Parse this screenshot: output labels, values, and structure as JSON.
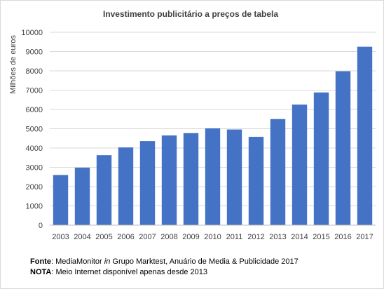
{
  "chart_data": {
    "type": "bar",
    "title": "Investimento publicitário a preços de tabela",
    "xlabel": "",
    "ylabel": "Milhões de euros",
    "categories": [
      "2003",
      "2004",
      "2005",
      "2006",
      "2007",
      "2008",
      "2009",
      "2010",
      "2011",
      "2012",
      "2013",
      "2014",
      "2015",
      "2016",
      "2017"
    ],
    "values": [
      2600,
      2980,
      3630,
      4030,
      4360,
      4650,
      4770,
      5020,
      4960,
      4580,
      5500,
      6250,
      6880,
      7980,
      9250
    ],
    "ylim": [
      0,
      10000
    ],
    "yticks": [
      0,
      1000,
      2000,
      3000,
      4000,
      5000,
      6000,
      7000,
      8000,
      9000,
      10000
    ],
    "grid": true,
    "legend": "none",
    "colors": {
      "bar": "#4472c4",
      "grid": "#d9d9d9",
      "axis": "#bfbfbf"
    }
  },
  "notes": {
    "source_label": "Fonte",
    "source_pre": ": MediaMonitor ",
    "source_in": "in",
    "source_post": " Grupo Marktest, Anuário de Media & Publicidade 2017",
    "note_label": "NOTA",
    "note_text": ": Meio Internet disponível apenas desde 2013"
  }
}
